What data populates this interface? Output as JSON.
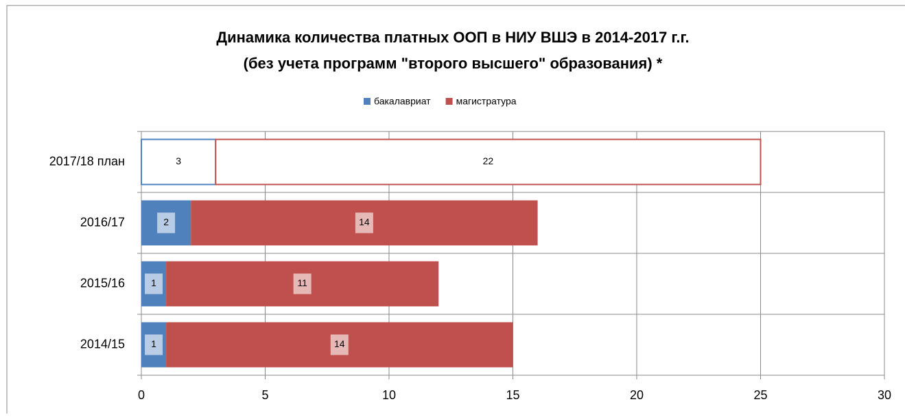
{
  "chart_data": {
    "type": "stacked-hbar",
    "title": [
      "Динамика количества платных ООП в НИУ ВШЭ в 2014-2017 г.г.",
      "(без учета программ  \"второго высшего\" образования) *"
    ],
    "categories": [
      "2014/15",
      "2015/16",
      "2016/17",
      "2017/18 план"
    ],
    "hollow": [
      false,
      false,
      false,
      true
    ],
    "series": [
      {
        "name": "бакалавриат",
        "color": "#4f81bd",
        "values": [
          1,
          1,
          2,
          3
        ]
      },
      {
        "name": "магистратура",
        "color": "#c0504d",
        "values": [
          14,
          11,
          14,
          22
        ]
      }
    ],
    "xlim": [
      0,
      30
    ],
    "xticks": [
      0,
      5,
      10,
      15,
      20,
      25,
      30
    ],
    "grid": true,
    "legend": "top"
  }
}
